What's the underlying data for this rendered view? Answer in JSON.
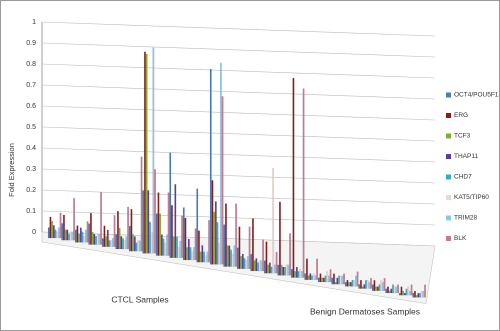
{
  "chart_data": {
    "type": "bar3d",
    "y_label": "Fold Expression",
    "group_labels": [
      "CTCL Samples",
      "Benign Dermatoses Samples"
    ],
    "categories": [
      null,
      null,
      null,
      null,
      null,
      null,
      null,
      null,
      null,
      null,
      null,
      null,
      null,
      null,
      null,
      null,
      null,
      null,
      null,
      null,
      null,
      null,
      null,
      null,
      null,
      null,
      null,
      null
    ],
    "ylim": [
      0,
      1
    ],
    "yticks": [
      0,
      0.1,
      0.2,
      0.3,
      0.4,
      0.5,
      0.6,
      0.7,
      0.8,
      0.9,
      1
    ],
    "grid": true,
    "legend": "right",
    "series": [
      {
        "name": "OCT4/POU5F1",
        "color": "#4a7ebb",
        "values": [
          0.05,
          0.08,
          0.06,
          0.1,
          0.04,
          0.07,
          0.12,
          0.3,
          0.2,
          0.5,
          0.25,
          0.35,
          0.93,
          0.2,
          0.1,
          0.08,
          0.06,
          0.05,
          0.04,
          0.03,
          0.02,
          0.03,
          0.02,
          0.02,
          0.03,
          0.02,
          0.01,
          0.02
        ]
      },
      {
        "name": "ERG",
        "color": "#8b1a1a",
        "values": [
          0.1,
          0.12,
          0.08,
          0.15,
          0.1,
          0.18,
          0.2,
          0.96,
          0.3,
          0.25,
          0.2,
          0.15,
          0.4,
          0.3,
          0.2,
          0.25,
          0.15,
          0.35,
          0.95,
          0.1,
          0.04,
          0.05,
          0.03,
          0.04,
          0.05,
          0.03,
          0.04,
          0.03
        ]
      },
      {
        "name": "TCF3",
        "color": "#7fb030",
        "values": [
          0.08,
          0.05,
          0.04,
          0.06,
          0.05,
          0.1,
          0.08,
          0.95,
          0.2,
          0.1,
          0.06,
          0.05,
          0.25,
          0.1,
          0.06,
          0.05,
          0.04,
          0.05,
          0.03,
          0.02,
          0.02,
          0.01,
          0.02,
          0.01,
          0.02,
          0.01,
          0.02,
          0.01
        ]
      },
      {
        "name": "THAP11",
        "color": "#5a3d9a",
        "values": [
          0.06,
          0.05,
          0.07,
          0.05,
          0.08,
          0.06,
          0.07,
          0.3,
          0.1,
          0.35,
          0.1,
          0.08,
          0.3,
          0.1,
          0.07,
          0.06,
          0.05,
          0.04,
          0.05,
          0.03,
          0.02,
          0.03,
          0.02,
          0.02,
          0.02,
          0.02,
          0.01,
          0.02
        ]
      },
      {
        "name": "CHD7",
        "color": "#3aa8c8",
        "values": [
          0.04,
          0.03,
          0.05,
          0.04,
          0.03,
          0.05,
          0.04,
          0.15,
          0.08,
          0.1,
          0.06,
          0.05,
          0.2,
          0.08,
          0.05,
          0.04,
          0.03,
          0.04,
          0.03,
          0.02,
          0.03,
          0.04,
          0.03,
          0.04,
          0.03,
          0.04,
          0.03,
          0.02
        ]
      },
      {
        "name": "KAT5/TIP60",
        "color": "#eed6cc",
        "values": [
          0.03,
          0.04,
          0.03,
          0.05,
          0.03,
          0.04,
          0.05,
          0.1,
          0.06,
          0.05,
          0.04,
          0.03,
          0.1,
          0.06,
          0.04,
          0.05,
          0.5,
          0.05,
          0.04,
          0.03,
          0.05,
          0.04,
          0.03,
          0.04,
          0.05,
          0.03,
          0.04,
          0.03
        ]
      },
      {
        "name": "TRIM28",
        "color": "#8ec8e8",
        "values": [
          0.05,
          0.04,
          0.06,
          0.05,
          0.04,
          0.06,
          0.05,
          0.98,
          0.1,
          0.08,
          0.06,
          0.05,
          0.96,
          0.1,
          0.06,
          0.05,
          0.04,
          0.05,
          0.03,
          0.02,
          0.03,
          0.04,
          0.05,
          0.03,
          0.04,
          0.03,
          0.02,
          0.03
        ]
      },
      {
        "name": "BLK",
        "color": "#c87890",
        "values": [
          0.12,
          0.2,
          0.1,
          0.25,
          0.15,
          0.2,
          0.45,
          0.4,
          0.3,
          0.2,
          0.15,
          0.2,
          0.8,
          0.3,
          0.2,
          0.15,
          0.1,
          0.2,
          0.9,
          0.1,
          0.06,
          0.05,
          0.07,
          0.05,
          0.06,
          0.04,
          0.05,
          0.06
        ]
      }
    ]
  }
}
